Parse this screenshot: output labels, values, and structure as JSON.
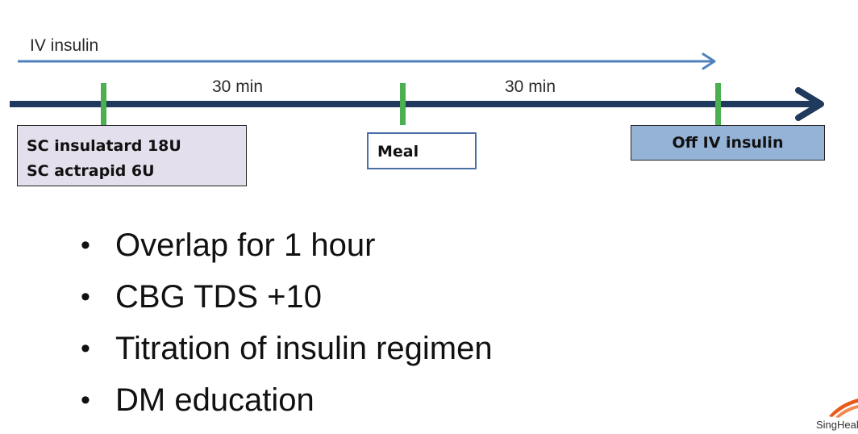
{
  "timeline": {
    "iv_label": "IV insulin",
    "intervals": [
      "30 min",
      "30 min"
    ],
    "events": [
      {
        "lines": [
          "SC insulatard 18U",
          "SC actrapid 6U"
        ]
      },
      {
        "lines": [
          "Meal"
        ]
      },
      {
        "lines": [
          "Off IV insulin"
        ]
      }
    ]
  },
  "bullets": [
    "Overlap for 1 hour",
    "CBG TDS +10",
    "Titration of insulin regimen",
    "DM education"
  ],
  "logo": {
    "text": "SingHealth"
  },
  "colors": {
    "timeline": "#1f3a5c",
    "iv_arrow": "#4f81bd",
    "tick": "#4caf50",
    "sc_box": "#e4dfec",
    "meal_border": "#4a6fa5",
    "off_box": "#95b3d7",
    "logo_accent": "#e85a1c"
  }
}
